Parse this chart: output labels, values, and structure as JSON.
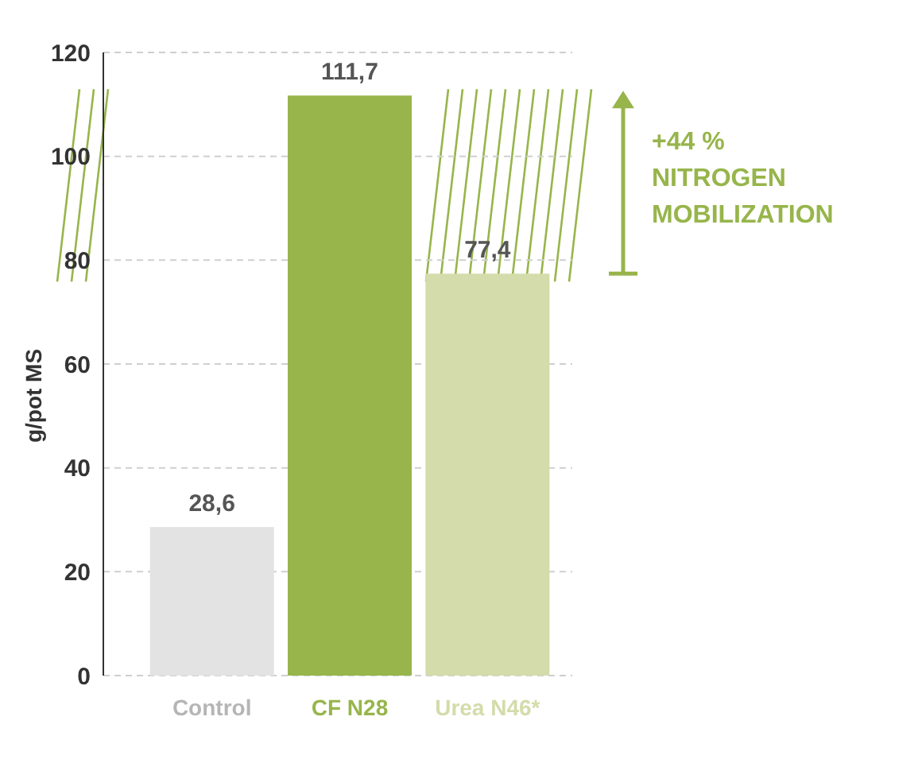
{
  "chart_data": {
    "type": "bar",
    "ylabel": "g/pot MS",
    "categories": [
      "Control",
      "CF N28",
      "Urea N46*"
    ],
    "values": [
      28.6,
      111.7,
      77.4
    ],
    "colors": [
      "#e3e3e3",
      "#97b54b",
      "#d3dcaa"
    ],
    "value_labels": [
      "28,6",
      "111,7",
      "77,4"
    ],
    "ylim": [
      0,
      120
    ],
    "yticks": [
      0,
      20,
      40,
      60,
      80,
      100,
      120
    ],
    "grid": "y",
    "annotations": [
      "+44 %\nNITROGEN\nMOBILIZATION"
    ]
  }
}
